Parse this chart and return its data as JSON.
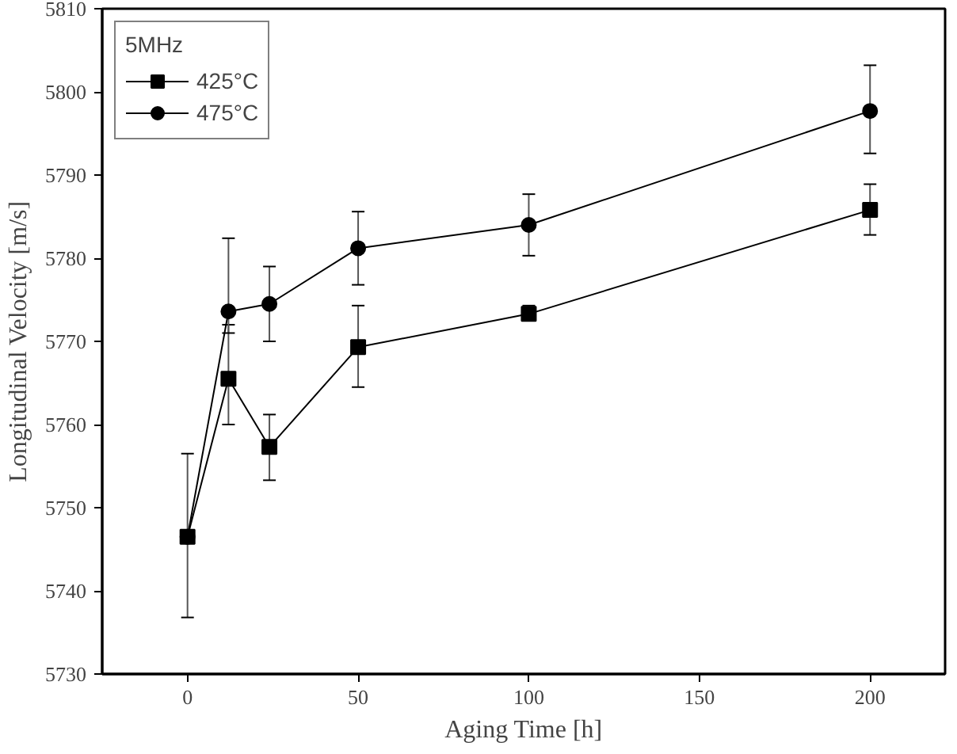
{
  "chart_data": {
    "type": "line",
    "xlabel": "Aging Time [h]",
    "ylabel": "Longitudinal Velocity [m/s]",
    "legend_title": "5MHz",
    "legend": "top left",
    "grid": false,
    "xlim": [
      -25,
      222
    ],
    "xticks": [
      0,
      50,
      100,
      150,
      200
    ],
    "ylim": [
      5730,
      5810
    ],
    "yticks": [
      5730,
      5740,
      5750,
      5760,
      5770,
      5780,
      5790,
      5800,
      5810
    ],
    "series": [
      {
        "name": "425°C",
        "color": "#000000",
        "marker": "square",
        "x": [
          0,
          12,
          24,
          50,
          100,
          200
        ],
        "values": [
          5746.5,
          5765.5,
          5757.3,
          5769.3,
          5773.3,
          5785.8
        ],
        "errors": [
          null,
          [
            5760,
            5772
          ],
          [
            5753.3,
            5761.2
          ],
          [
            5764.5,
            5774.3
          ],
          [
            5772.6,
            5774.3
          ],
          [
            5782.8,
            5788.9
          ]
        ]
      },
      {
        "name": "475°C",
        "color": "#000000",
        "marker": "circle",
        "x": [
          0,
          12,
          24,
          50,
          100,
          200
        ],
        "values": [
          5746.5,
          5773.6,
          5774.5,
          5781.2,
          5784,
          5797.7
        ],
        "errors": [
          [
            5736.8,
            5756.5
          ],
          [
            5771,
            5782.4
          ],
          [
            5770,
            5779
          ],
          [
            5776.8,
            5785.6
          ],
          [
            5780.3,
            5787.7
          ],
          [
            5792.6,
            5803.2
          ]
        ]
      }
    ]
  }
}
